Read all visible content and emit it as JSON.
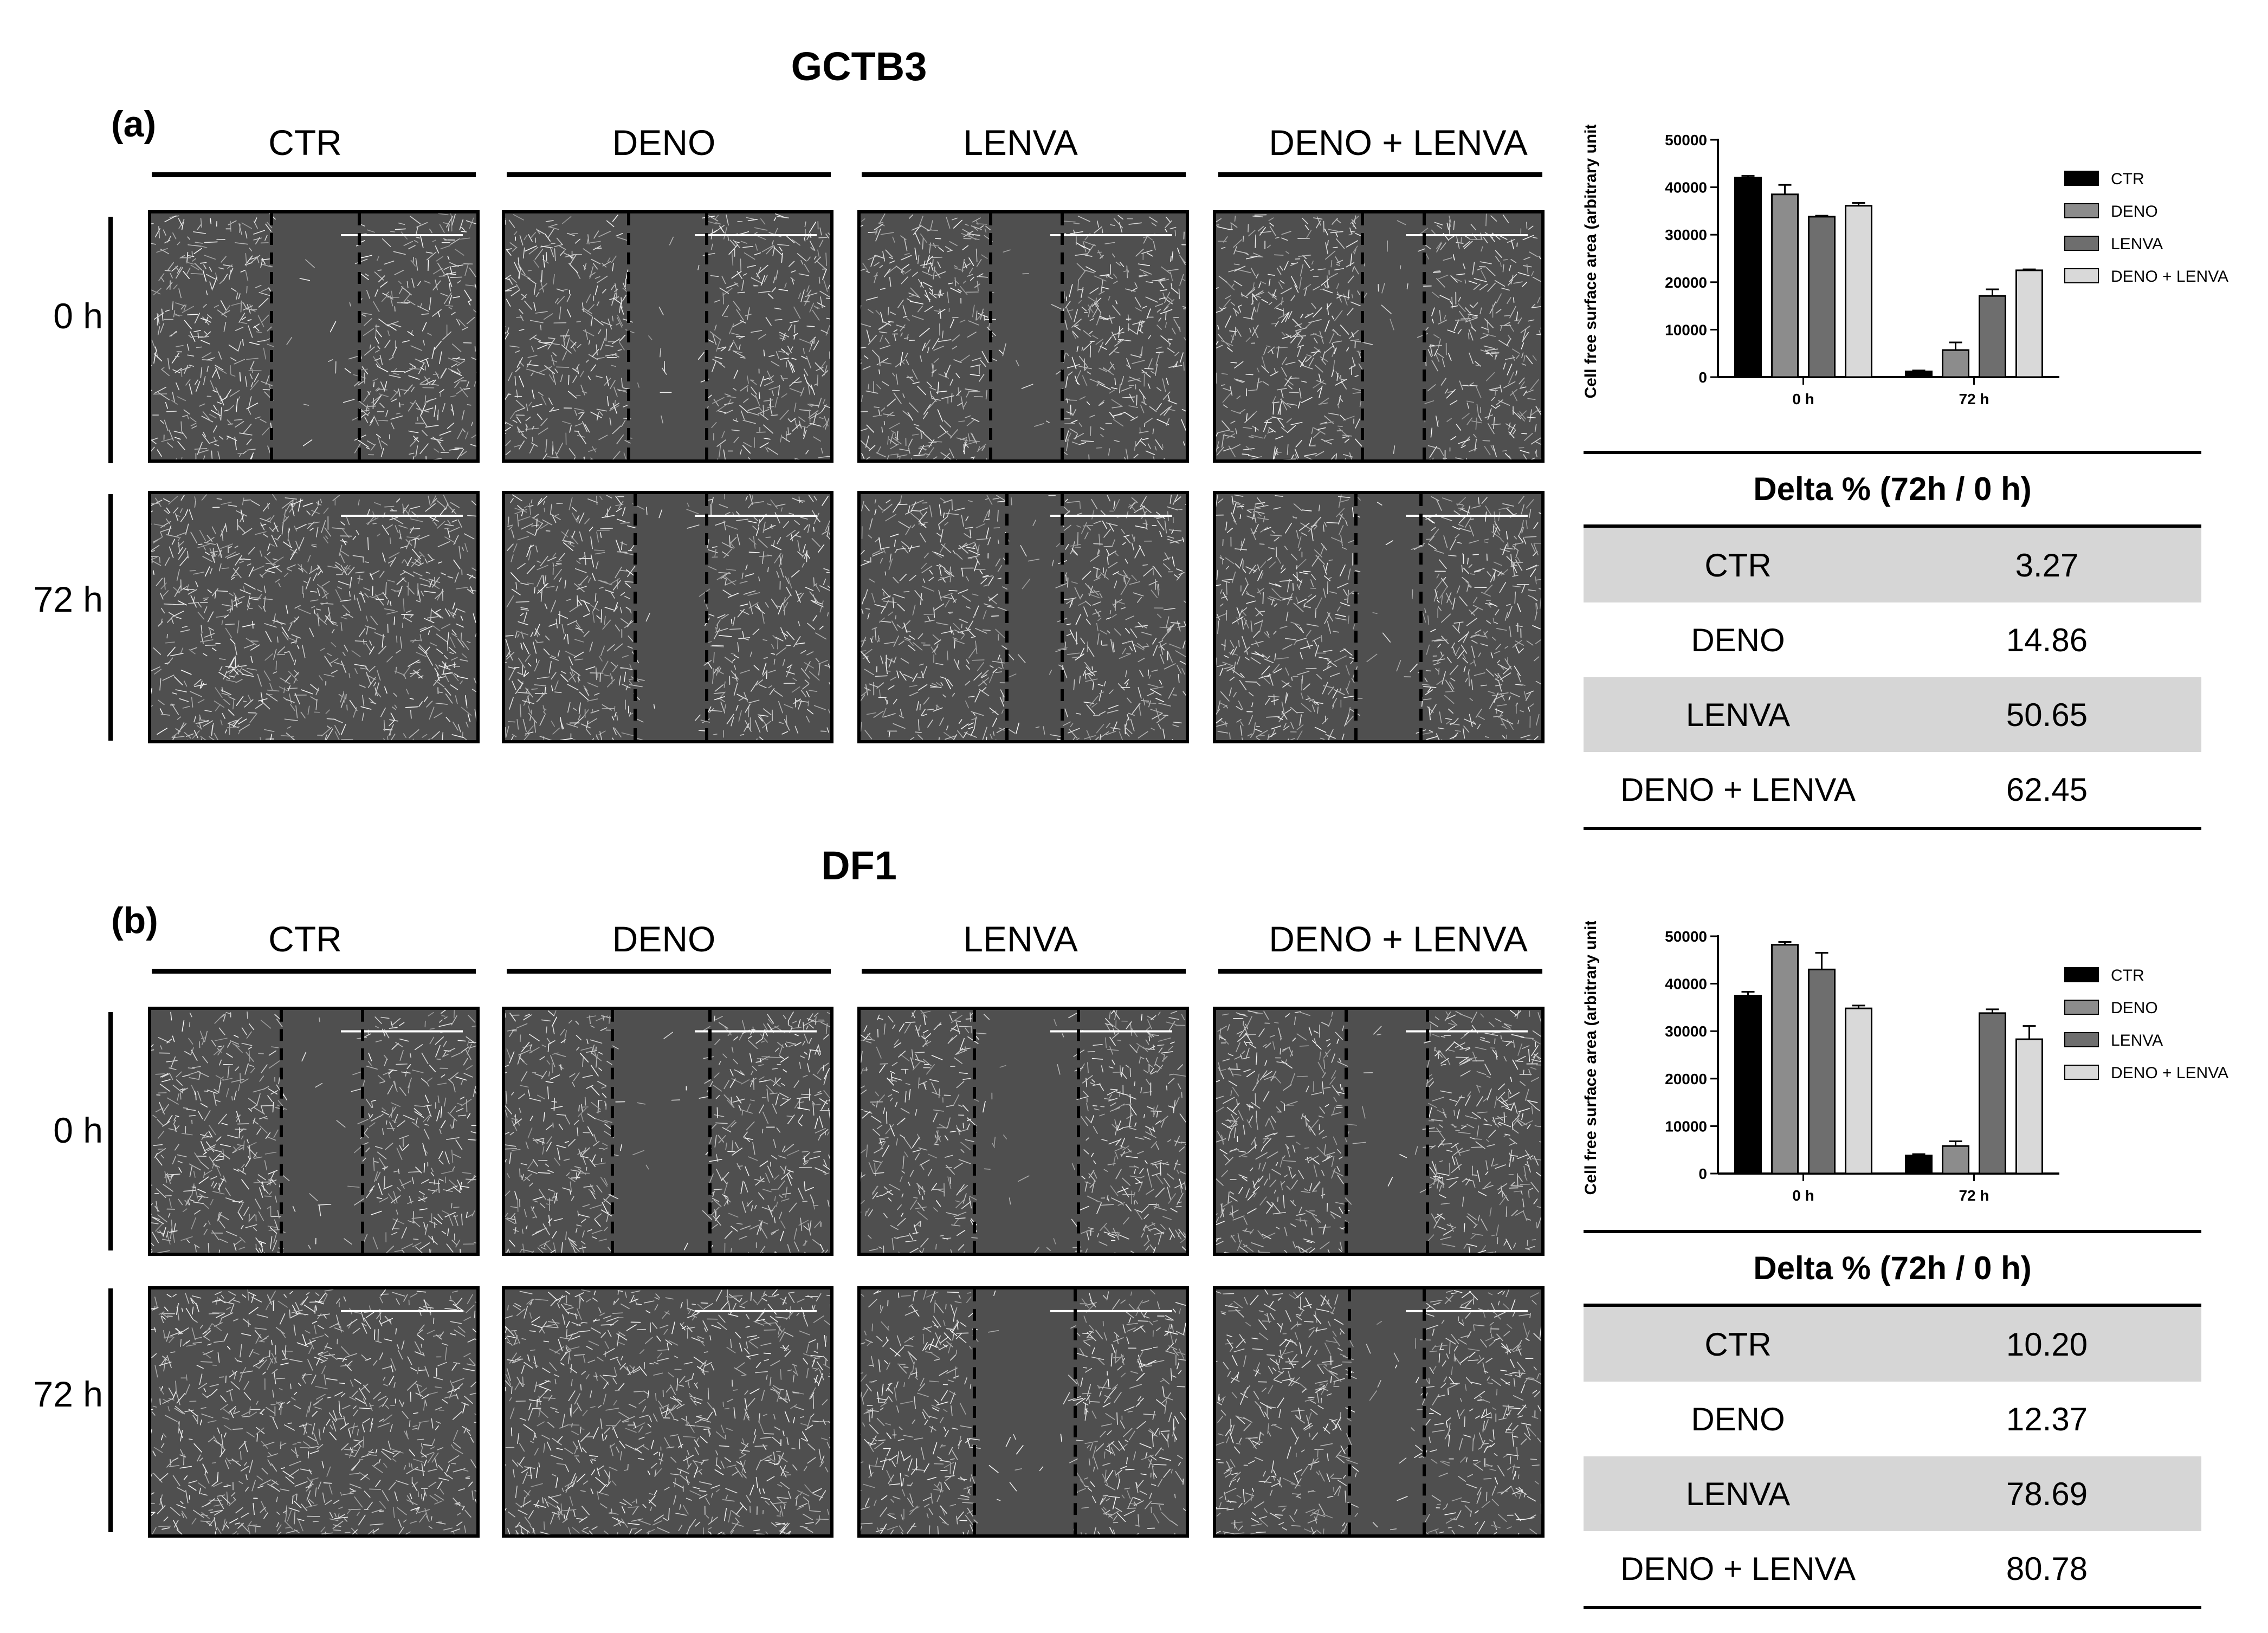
{
  "panels": [
    {
      "id": "a",
      "title": "GCTB3",
      "label": "(a)",
      "columns": [
        "CTR",
        "DENO",
        "LENVA",
        "DENO + LENVA"
      ],
      "rows": [
        "0 h",
        "72 h"
      ],
      "chart_data": {
        "type": "bar",
        "categories": [
          "0 h",
          "72 h"
        ],
        "series": [
          {
            "name": "CTR",
            "values": [
              42000,
              1200
            ],
            "errors": [
              400,
              200
            ],
            "color": "#000000"
          },
          {
            "name": "DENO",
            "values": [
              38500,
              5700
            ],
            "errors": [
              2000,
              1600
            ],
            "color": "#8c8c8c"
          },
          {
            "name": "LENVA",
            "values": [
              33800,
              17100
            ],
            "errors": [
              200,
              1400
            ],
            "color": "#6e6e6e"
          },
          {
            "name": "DENO + LENVA",
            "values": [
              36100,
              22500
            ],
            "errors": [
              600,
              200
            ],
            "color": "#d9d9d9"
          }
        ],
        "ylabel": "Cell free surface area (arbitrary unit)",
        "ylim": [
          0,
          50000
        ],
        "yticks": [
          "0",
          "10000",
          "20000",
          "30000",
          "40000",
          "50000"
        ],
        "legend": "right"
      },
      "table": {
        "header": "Delta % (72h / 0 h)",
        "rows": [
          {
            "name": "CTR",
            "value": "3.27"
          },
          {
            "name": "DENO",
            "value": "14.86"
          },
          {
            "name": "LENVA",
            "value": "50.65"
          },
          {
            "name": "DENO + LENVA",
            "value": "62.45"
          }
        ]
      }
    },
    {
      "id": "b",
      "title": "DF1",
      "label": "(b)",
      "columns": [
        "CTR",
        "DENO",
        "LENVA",
        "DENO + LENVA"
      ],
      "rows": [
        "0 h",
        "72 h"
      ],
      "chart_data": {
        "type": "bar",
        "categories": [
          "0 h",
          "72 h"
        ],
        "series": [
          {
            "name": "CTR",
            "values": [
              37500,
              3800
            ],
            "errors": [
              800,
              300
            ],
            "color": "#000000"
          },
          {
            "name": "DENO",
            "values": [
              48200,
              5800
            ],
            "errors": [
              600,
              1000
            ],
            "color": "#8c8c8c"
          },
          {
            "name": "LENVA",
            "values": [
              43000,
              33800
            ],
            "errors": [
              3500,
              800
            ],
            "color": "#6e6e6e"
          },
          {
            "name": "DENO + LENVA",
            "values": [
              34800,
              28300
            ],
            "errors": [
              600,
              2800
            ],
            "color": "#d9d9d9"
          }
        ],
        "ylabel": "Cell free surface area (arbitrary unit)",
        "ylim": [
          0,
          50000
        ],
        "yticks": [
          "0",
          "10000",
          "20000",
          "30000",
          "40000",
          "50000"
        ],
        "legend": "right"
      },
      "table": {
        "header": "Delta % (72h / 0 h)",
        "rows": [
          {
            "name": "CTR",
            "value": "10.20"
          },
          {
            "name": "DENO",
            "value": "12.37"
          },
          {
            "name": "LENVA",
            "value": "78.69"
          },
          {
            "name": "DENO + LENVA",
            "value": "80.78"
          }
        ]
      }
    }
  ]
}
